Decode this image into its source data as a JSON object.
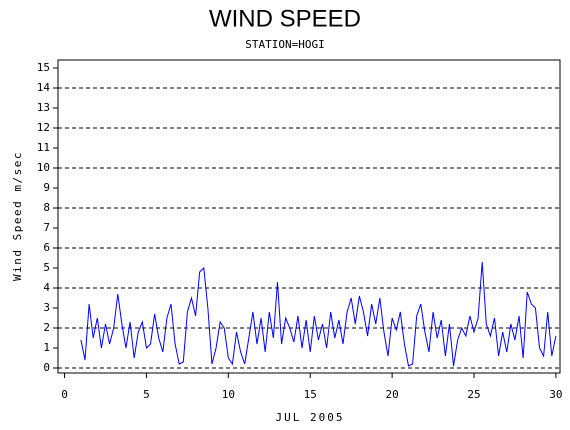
{
  "chart_data": {
    "type": "line",
    "title": "WIND SPEED",
    "subtitle": "STATION=HOGI",
    "x_label": "JUL 2005",
    "y_label": "Wind Speed m/sec",
    "xlim": [
      -0.4,
      30.25
    ],
    "ylim": [
      -0.25,
      15.4
    ],
    "xticks": [
      0,
      5,
      10,
      15,
      20,
      25,
      30
    ],
    "yticks": [
      0,
      1,
      2,
      3,
      4,
      5,
      6,
      7,
      8,
      9,
      10,
      11,
      12,
      13,
      14,
      15
    ],
    "grid_lines": [
      0,
      2,
      4,
      6,
      8,
      10,
      12,
      14
    ],
    "x": [
      1.0,
      1.25,
      1.5,
      1.75,
      2.0,
      2.25,
      2.5,
      2.75,
      3.0,
      3.25,
      3.5,
      3.75,
      4.0,
      4.25,
      4.5,
      4.75,
      5.0,
      5.25,
      5.5,
      5.75,
      6.0,
      6.25,
      6.5,
      6.75,
      7.0,
      7.25,
      7.5,
      7.75,
      8.0,
      8.25,
      8.5,
      8.75,
      9.0,
      9.25,
      9.5,
      9.75,
      10.0,
      10.25,
      10.5,
      10.75,
      11.0,
      11.25,
      11.5,
      11.75,
      12.0,
      12.25,
      12.5,
      12.75,
      13.0,
      13.25,
      13.5,
      13.75,
      14.0,
      14.25,
      14.5,
      14.75,
      15.0,
      15.25,
      15.5,
      15.75,
      16.0,
      16.25,
      16.5,
      16.75,
      17.0,
      17.25,
      17.5,
      17.75,
      18.0,
      18.25,
      18.5,
      18.75,
      19.0,
      19.25,
      19.5,
      19.75,
      20.0,
      20.25,
      20.5,
      20.75,
      21.0,
      21.25,
      21.5,
      21.75,
      22.0,
      22.25,
      22.5,
      22.75,
      23.0,
      23.25,
      23.5,
      23.75,
      24.0,
      24.25,
      24.5,
      24.75,
      25.0,
      25.25,
      25.5,
      25.75,
      26.0,
      26.25,
      26.5,
      26.75,
      27.0,
      27.25,
      27.5,
      27.75,
      28.0,
      28.25,
      28.5,
      28.75,
      29.0,
      29.25,
      29.5,
      29.75,
      30.0
    ],
    "series": [
      {
        "name": "Wind Speed",
        "color": "#0000ff",
        "values": [
          1.4,
          0.4,
          3.2,
          1.5,
          2.5,
          1.0,
          2.2,
          1.2,
          2.0,
          3.7,
          2.2,
          1.0,
          2.3,
          0.5,
          1.8,
          2.3,
          1.0,
          1.2,
          2.7,
          1.5,
          0.8,
          2.5,
          3.2,
          1.2,
          0.2,
          0.3,
          2.8,
          3.5,
          2.6,
          4.8,
          5.0,
          3.0,
          0.2,
          1.0,
          2.3,
          2.0,
          0.5,
          0.2,
          1.8,
          0.8,
          0.2,
          1.5,
          2.8,
          1.2,
          2.5,
          0.8,
          2.8,
          1.5,
          4.3,
          1.2,
          2.5,
          2.0,
          1.3,
          2.6,
          1.0,
          2.4,
          0.8,
          2.6,
          1.4,
          2.2,
          1.0,
          2.8,
          1.5,
          2.4,
          1.2,
          2.8,
          3.5,
          2.2,
          3.6,
          2.8,
          1.6,
          3.2,
          2.2,
          3.5,
          1.8,
          0.6,
          2.5,
          1.9,
          2.8,
          1.2,
          0.1,
          0.2,
          2.6,
          3.2,
          1.8,
          0.8,
          2.8,
          1.5,
          2.4,
          0.6,
          2.2,
          0.1,
          1.4,
          2.0,
          1.6,
          2.6,
          1.8,
          2.5,
          5.3,
          2.2,
          1.6,
          2.5,
          0.6,
          1.8,
          0.8,
          2.2,
          1.4,
          2.6,
          0.5,
          3.8,
          3.2,
          3.0,
          1.0,
          0.6,
          2.8,
          0.6,
          1.6
        ]
      }
    ]
  }
}
